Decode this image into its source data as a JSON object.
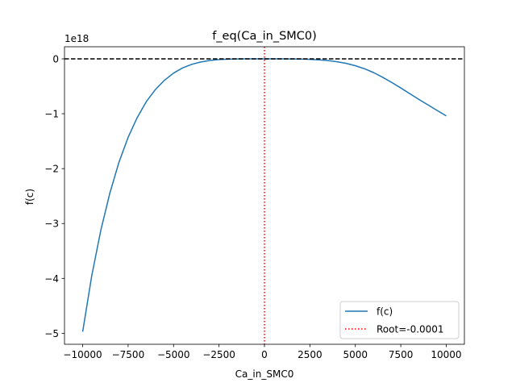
{
  "chart_data": {
    "type": "line",
    "title": "f_eq(Ca_in_SMC0)",
    "xlabel": "Ca_in_SMC0",
    "ylabel": "f(c)",
    "y_offset_label": "1e18",
    "y_scale": 1e+18,
    "xlim": [
      -11000,
      11000
    ],
    "ylim": [
      -5.2,
      0.22
    ],
    "x_ticks": [
      -10000,
      -7500,
      -5000,
      -2500,
      0,
      2500,
      5000,
      7500,
      10000
    ],
    "x_tick_labels": [
      "−10000",
      "−7500",
      "−5000",
      "−2500",
      "0",
      "2500",
      "5000",
      "7500",
      "10000"
    ],
    "y_ticks": [
      0,
      -1,
      -2,
      -3,
      -4,
      -5
    ],
    "y_tick_labels": [
      "0",
      "−1",
      "−2",
      "−3",
      "−4",
      "−5"
    ],
    "series": [
      {
        "name": "f(c)",
        "color": "#1f77b4",
        "style": "solid",
        "x": [
          -10000,
          -9500,
          -9000,
          -8500,
          -8000,
          -7500,
          -7000,
          -6500,
          -6000,
          -5500,
          -5000,
          -4500,
          -4000,
          -3500,
          -3000,
          -2500,
          -2000,
          -1500,
          -1000,
          -500,
          0,
          500,
          1000,
          1500,
          2000,
          2500,
          3000,
          3500,
          4000,
          4500,
          5000,
          5500,
          6000,
          6500,
          7000,
          7500,
          8000,
          8500,
          9000,
          9500,
          10000
        ],
        "y": [
          -4.97,
          -3.95,
          -3.12,
          -2.44,
          -1.88,
          -1.43,
          -1.07,
          -0.78,
          -0.56,
          -0.39,
          -0.26,
          -0.165,
          -0.1,
          -0.057,
          -0.03,
          -0.014,
          -0.006,
          -0.002,
          -0.0005,
          -0.0001,
          0,
          -0.0001,
          -0.0004,
          -0.0015,
          -0.004,
          -0.009,
          -0.018,
          -0.032,
          -0.053,
          -0.083,
          -0.125,
          -0.18,
          -0.25,
          -0.335,
          -0.43,
          -0.53,
          -0.635,
          -0.74,
          -0.84,
          -0.94,
          -1.04
        ]
      }
    ],
    "reference_lines": [
      {
        "orientation": "horizontal",
        "value": 0,
        "color": "#000000",
        "style": "dashed"
      },
      {
        "orientation": "vertical",
        "value": -0.0001,
        "color": "#ff0000",
        "style": "dotted",
        "name": "Root=-0.0001"
      }
    ],
    "legend_position": "lower-right",
    "legend_entries": [
      {
        "label": "f(c)",
        "color": "#1f77b4",
        "style": "solid"
      },
      {
        "label": "Root=-0.0001",
        "color": "#ff0000",
        "style": "dotted"
      }
    ],
    "grid": false
  }
}
